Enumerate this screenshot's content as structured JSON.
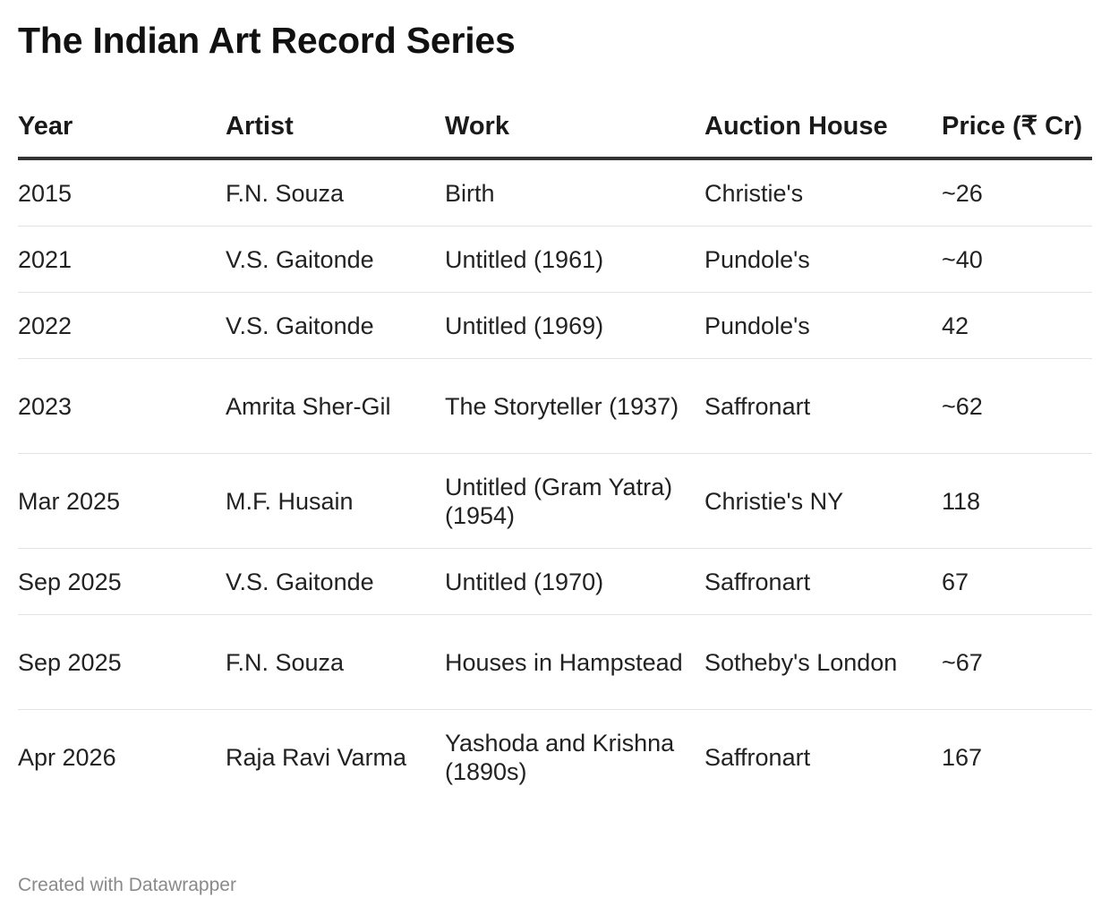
{
  "title": "The Indian Art Record Series",
  "chart_data": {
    "type": "table",
    "title": "The Indian Art Record Series",
    "columns": [
      "Year",
      "Artist",
      "Work",
      "Auction House",
      "Price (₹ Cr)"
    ],
    "rows": [
      [
        "2015",
        "F.N. Souza",
        "Birth",
        "Christie's",
        "~26"
      ],
      [
        "2021",
        "V.S. Gaitonde",
        "Untitled (1961)",
        "Pundole's",
        "~40"
      ],
      [
        "2022",
        "V.S. Gaitonde",
        "Untitled (1969)",
        "Pundole's",
        "42"
      ],
      [
        "2023",
        "Amrita Sher-Gil",
        "The Storyteller (1937)",
        "Saffronart",
        "~62"
      ],
      [
        "Mar 2025",
        "M.F. Husain",
        "Untitled (Gram Yatra) (1954)",
        "Christie's NY",
        "118"
      ],
      [
        "Sep 2025",
        "V.S. Gaitonde",
        "Untitled (1970)",
        "Saffronart",
        "67"
      ],
      [
        "Sep 2025",
        "F.N. Souza",
        "Houses in Hampstead",
        "Sotheby's London",
        "~67"
      ],
      [
        "Apr 2026",
        "Raja Ravi Varma",
        "Yashoda and Krishna (1890s)",
        "Saffronart",
        "167"
      ]
    ]
  },
  "footer": "Created with Datawrapper"
}
